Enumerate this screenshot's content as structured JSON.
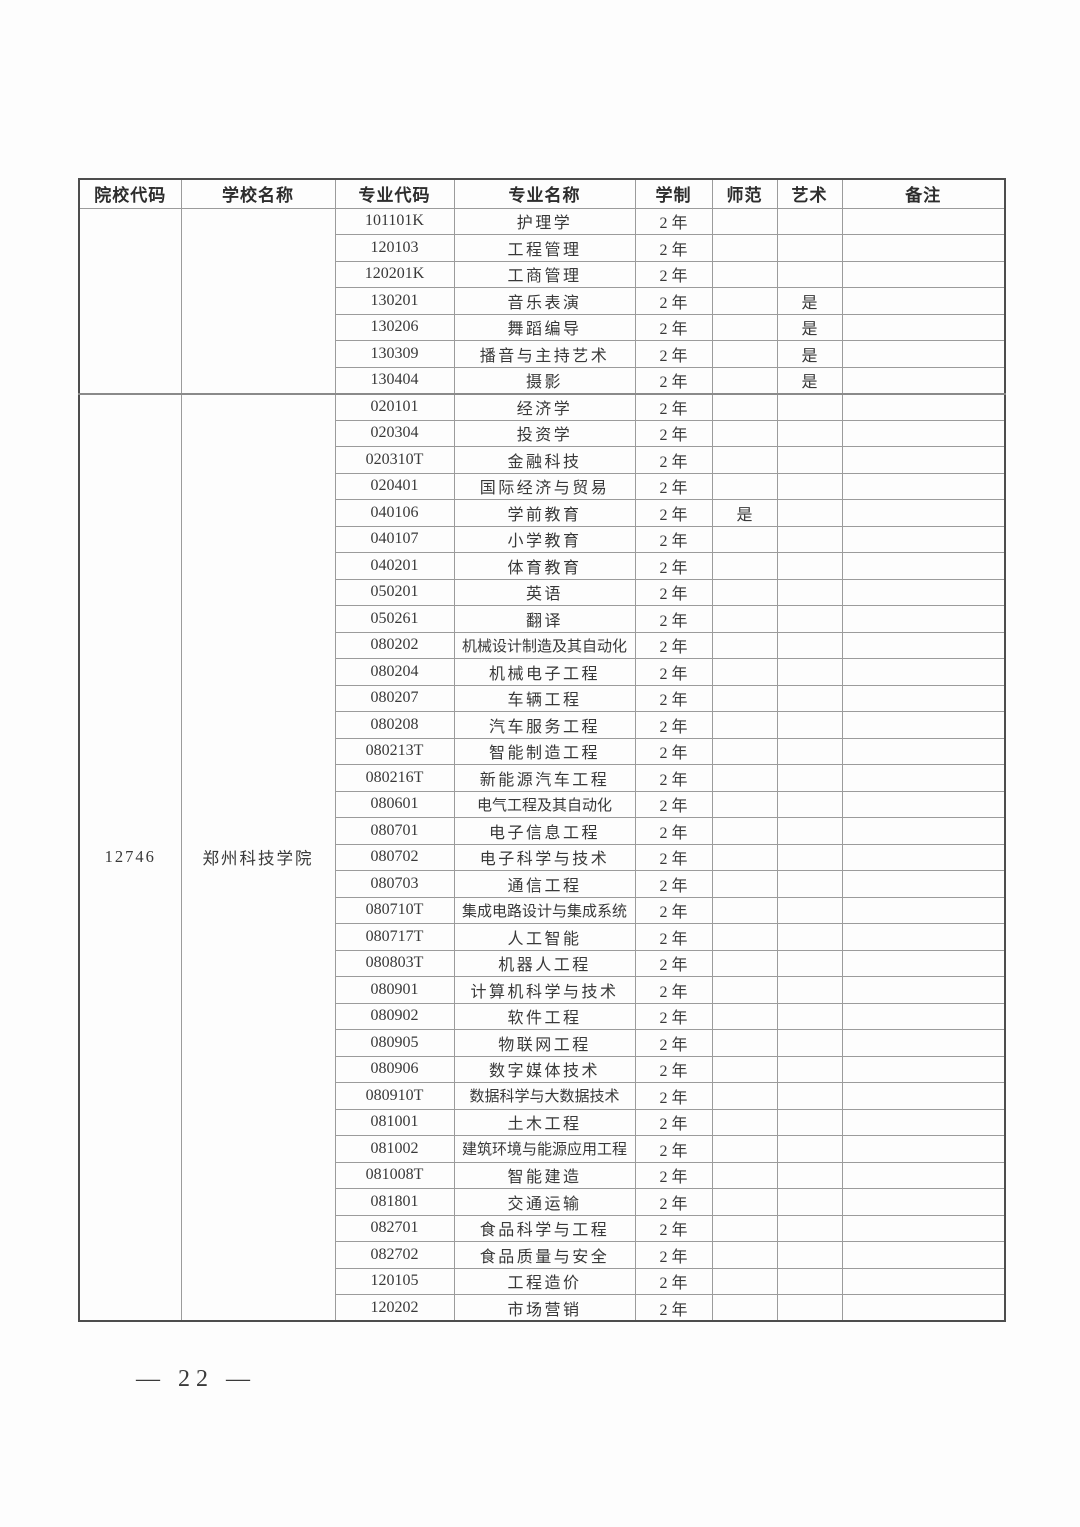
{
  "page": {
    "footer": "— 22 —"
  },
  "table": {
    "headers": [
      "院校代码",
      "学校名称",
      "专业代码",
      "专业名称",
      "学制",
      "师范",
      "艺术",
      "备注"
    ],
    "sections": [
      {
        "institution_code": "",
        "school_name": "",
        "majors": [
          {
            "code": "101101K",
            "name": "护理学",
            "duration": "2 年",
            "normal": "",
            "art": "",
            "remark": ""
          },
          {
            "code": "120103",
            "name": "工程管理",
            "duration": "2 年",
            "normal": "",
            "art": "",
            "remark": ""
          },
          {
            "code": "120201K",
            "name": "工商管理",
            "duration": "2 年",
            "normal": "",
            "art": "",
            "remark": ""
          },
          {
            "code": "130201",
            "name": "音乐表演",
            "duration": "2 年",
            "normal": "",
            "art": "是",
            "remark": ""
          },
          {
            "code": "130206",
            "name": "舞蹈编导",
            "duration": "2 年",
            "normal": "",
            "art": "是",
            "remark": ""
          },
          {
            "code": "130309",
            "name": "播音与主持艺术",
            "duration": "2 年",
            "normal": "",
            "art": "是",
            "remark": ""
          },
          {
            "code": "130404",
            "name": "摄影",
            "duration": "2 年",
            "normal": "",
            "art": "是",
            "remark": ""
          }
        ]
      },
      {
        "institution_code": "12746",
        "school_name": "郑州科技学院",
        "majors": [
          {
            "code": "020101",
            "name": "经济学",
            "duration": "2 年",
            "normal": "",
            "art": "",
            "remark": ""
          },
          {
            "code": "020304",
            "name": "投资学",
            "duration": "2 年",
            "normal": "",
            "art": "",
            "remark": ""
          },
          {
            "code": "020310T",
            "name": "金融科技",
            "duration": "2 年",
            "normal": "",
            "art": "",
            "remark": ""
          },
          {
            "code": "020401",
            "name": "国际经济与贸易",
            "duration": "2 年",
            "normal": "",
            "art": "",
            "remark": ""
          },
          {
            "code": "040106",
            "name": "学前教育",
            "duration": "2 年",
            "normal": "是",
            "art": "",
            "remark": ""
          },
          {
            "code": "040107",
            "name": "小学教育",
            "duration": "2 年",
            "normal": "",
            "art": "",
            "remark": ""
          },
          {
            "code": "040201",
            "name": "体育教育",
            "duration": "2 年",
            "normal": "",
            "art": "",
            "remark": ""
          },
          {
            "code": "050201",
            "name": "英语",
            "duration": "2 年",
            "normal": "",
            "art": "",
            "remark": ""
          },
          {
            "code": "050261",
            "name": "翻译",
            "duration": "2 年",
            "normal": "",
            "art": "",
            "remark": ""
          },
          {
            "code": "080202",
            "name": "机械设计制造及其自动化",
            "duration": "2 年",
            "normal": "",
            "art": "",
            "remark": ""
          },
          {
            "code": "080204",
            "name": "机械电子工程",
            "duration": "2 年",
            "normal": "",
            "art": "",
            "remark": ""
          },
          {
            "code": "080207",
            "name": "车辆工程",
            "duration": "2 年",
            "normal": "",
            "art": "",
            "remark": ""
          },
          {
            "code": "080208",
            "name": "汽车服务工程",
            "duration": "2 年",
            "normal": "",
            "art": "",
            "remark": ""
          },
          {
            "code": "080213T",
            "name": "智能制造工程",
            "duration": "2 年",
            "normal": "",
            "art": "",
            "remark": ""
          },
          {
            "code": "080216T",
            "name": "新能源汽车工程",
            "duration": "2 年",
            "normal": "",
            "art": "",
            "remark": ""
          },
          {
            "code": "080601",
            "name": "电气工程及其自动化",
            "duration": "2 年",
            "normal": "",
            "art": "",
            "remark": ""
          },
          {
            "code": "080701",
            "name": "电子信息工程",
            "duration": "2 年",
            "normal": "",
            "art": "",
            "remark": ""
          },
          {
            "code": "080702",
            "name": "电子科学与技术",
            "duration": "2 年",
            "normal": "",
            "art": "",
            "remark": ""
          },
          {
            "code": "080703",
            "name": "通信工程",
            "duration": "2 年",
            "normal": "",
            "art": "",
            "remark": ""
          },
          {
            "code": "080710T",
            "name": "集成电路设计与集成系统",
            "duration": "2 年",
            "normal": "",
            "art": "",
            "remark": ""
          },
          {
            "code": "080717T",
            "name": "人工智能",
            "duration": "2 年",
            "normal": "",
            "art": "",
            "remark": ""
          },
          {
            "code": "080803T",
            "name": "机器人工程",
            "duration": "2 年",
            "normal": "",
            "art": "",
            "remark": ""
          },
          {
            "code": "080901",
            "name": "计算机科学与技术",
            "duration": "2 年",
            "normal": "",
            "art": "",
            "remark": ""
          },
          {
            "code": "080902",
            "name": "软件工程",
            "duration": "2 年",
            "normal": "",
            "art": "",
            "remark": ""
          },
          {
            "code": "080905",
            "name": "物联网工程",
            "duration": "2 年",
            "normal": "",
            "art": "",
            "remark": ""
          },
          {
            "code": "080906",
            "name": "数字媒体技术",
            "duration": "2 年",
            "normal": "",
            "art": "",
            "remark": ""
          },
          {
            "code": "080910T",
            "name": "数据科学与大数据技术",
            "duration": "2 年",
            "normal": "",
            "art": "",
            "remark": ""
          },
          {
            "code": "081001",
            "name": "土木工程",
            "duration": "2 年",
            "normal": "",
            "art": "",
            "remark": ""
          },
          {
            "code": "081002",
            "name": "建筑环境与能源应用工程",
            "duration": "2 年",
            "normal": "",
            "art": "",
            "remark": ""
          },
          {
            "code": "081008T",
            "name": "智能建造",
            "duration": "2 年",
            "normal": "",
            "art": "",
            "remark": ""
          },
          {
            "code": "081801",
            "name": "交通运输",
            "duration": "2 年",
            "normal": "",
            "art": "",
            "remark": ""
          },
          {
            "code": "082701",
            "name": "食品科学与工程",
            "duration": "2 年",
            "normal": "",
            "art": "",
            "remark": ""
          },
          {
            "code": "082702",
            "name": "食品质量与安全",
            "duration": "2 年",
            "normal": "",
            "art": "",
            "remark": ""
          },
          {
            "code": "120105",
            "name": "工程造价",
            "duration": "2 年",
            "normal": "",
            "art": "",
            "remark": ""
          },
          {
            "code": "120202",
            "name": "市场营销",
            "duration": "2 年",
            "normal": "",
            "art": "",
            "remark": ""
          }
        ]
      }
    ]
  }
}
